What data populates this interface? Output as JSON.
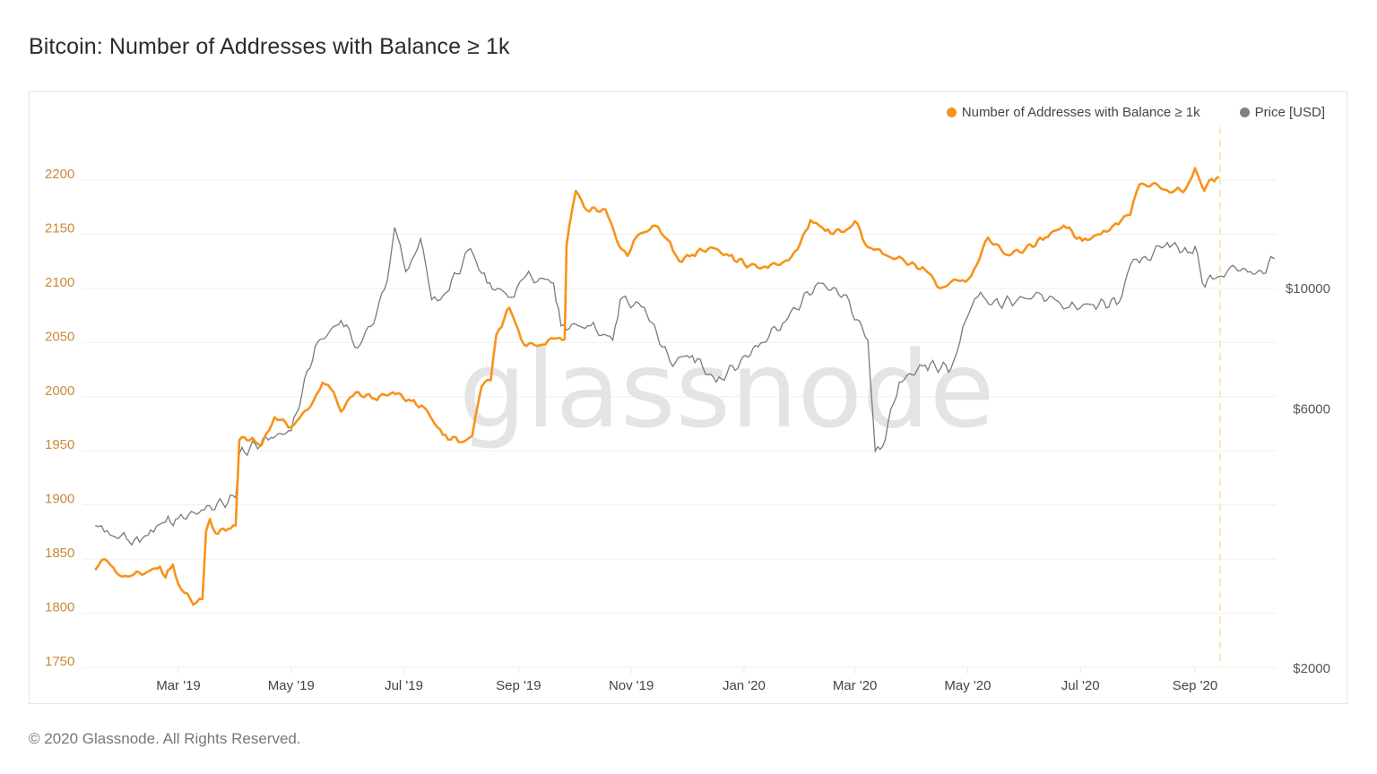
{
  "header": {
    "title": "Bitcoin: Number of Addresses with Balance ≥ 1k"
  },
  "legend": [
    {
      "label": "Number of Addresses with Balance ≥ 1k",
      "color": "#f7931a"
    },
    {
      "label": "Price [USD]",
      "color": "#808080"
    }
  ],
  "watermark": "glassnode",
  "footer": {
    "copyright": "© 2020 Glassnode. All Rights Reserved."
  },
  "chart_data": {
    "type": "line",
    "title": "Bitcoin: Number of Addresses with Balance ≥ 1k",
    "xlabel": "",
    "ylabel": "",
    "x_ticks": [
      "Mar '19",
      "May '19",
      "Jul '19",
      "Sep '19",
      "Nov '19",
      "Jan '20",
      "Mar '20",
      "May '20",
      "Jul '20",
      "Sep '20"
    ],
    "y_left": {
      "ticks": [
        1750,
        1800,
        1850,
        1900,
        1950,
        2000,
        2050,
        2100,
        2150,
        2200
      ],
      "range": [
        1750,
        2225
      ],
      "color": "#c98a3a"
    },
    "y_right": {
      "ticks": [
        "$2000",
        "$6000",
        "$10000"
      ],
      "scale": "log",
      "range": [
        2000,
        20000
      ]
    },
    "grid": true,
    "legend_position": "top-right",
    "annotations": [
      {
        "type": "vertical-dashed-line",
        "x": "mid Sep '20",
        "color": "#fde9c2"
      }
    ],
    "x_range": [
      "Jan '19 (mid)",
      "Oct '20 (early)"
    ],
    "series": [
      {
        "name": "Number of Addresses with Balance ≥ 1k",
        "axis": "left",
        "color": "#f7931a",
        "points": [
          [
            "2019-01-15",
            1840
          ],
          [
            "2019-01-20",
            1850
          ],
          [
            "2019-01-28",
            1835
          ],
          [
            "2019-02-05",
            1836
          ],
          [
            "2019-02-12",
            1838
          ],
          [
            "2019-02-19",
            1843
          ],
          [
            "2019-02-22",
            1833
          ],
          [
            "2019-02-26",
            1845
          ],
          [
            "2019-03-01",
            1827
          ],
          [
            "2019-03-06",
            1818
          ],
          [
            "2019-03-09",
            1808
          ],
          [
            "2019-03-14",
            1813
          ],
          [
            "2019-03-16",
            1876
          ],
          [
            "2019-03-18",
            1887
          ],
          [
            "2019-03-21",
            1874
          ],
          [
            "2019-03-28",
            1878
          ],
          [
            "2019-04-01",
            1881
          ],
          [
            "2019-04-03",
            1960
          ],
          [
            "2019-04-10",
            1962
          ],
          [
            "2019-04-15",
            1955
          ],
          [
            "2019-04-22",
            1981
          ],
          [
            "2019-05-01",
            1972
          ],
          [
            "2019-05-10",
            1988
          ],
          [
            "2019-05-18",
            2013
          ],
          [
            "2019-05-24",
            2004
          ],
          [
            "2019-05-28",
            1986
          ],
          [
            "2019-06-05",
            2004
          ],
          [
            "2019-06-15",
            1998
          ],
          [
            "2019-06-25",
            2004
          ],
          [
            "2019-07-05",
            1996
          ],
          [
            "2019-07-12",
            1990
          ],
          [
            "2019-07-22",
            1965
          ],
          [
            "2019-08-01",
            1958
          ],
          [
            "2019-08-07",
            1964
          ],
          [
            "2019-08-12",
            2009
          ],
          [
            "2019-08-17",
            2015
          ],
          [
            "2019-08-20",
            2057
          ],
          [
            "2019-08-27",
            2082
          ],
          [
            "2019-09-04",
            2048
          ],
          [
            "2019-09-14",
            2048
          ],
          [
            "2019-09-22",
            2054
          ],
          [
            "2019-09-26",
            2053
          ],
          [
            "2019-09-27",
            2140
          ],
          [
            "2019-10-02",
            2190
          ],
          [
            "2019-10-08",
            2172
          ],
          [
            "2019-10-18",
            2173
          ],
          [
            "2019-10-24",
            2145
          ],
          [
            "2019-10-30",
            2130
          ],
          [
            "2019-11-04",
            2148
          ],
          [
            "2019-11-14",
            2158
          ],
          [
            "2019-11-22",
            2143
          ],
          [
            "2019-11-27",
            2125
          ],
          [
            "2019-12-04",
            2131
          ],
          [
            "2019-12-14",
            2138
          ],
          [
            "2019-12-24",
            2130
          ],
          [
            "2020-01-04",
            2121
          ],
          [
            "2020-01-14",
            2119
          ],
          [
            "2020-01-22",
            2124
          ],
          [
            "2020-01-30",
            2136
          ],
          [
            "2020-02-06",
            2163
          ],
          [
            "2020-02-14",
            2153
          ],
          [
            "2020-02-24",
            2152
          ],
          [
            "2020-03-01",
            2162
          ],
          [
            "2020-03-08",
            2138
          ],
          [
            "2020-03-16",
            2132
          ],
          [
            "2020-03-28",
            2125
          ],
          [
            "2020-04-08",
            2117
          ],
          [
            "2020-04-16",
            2100
          ],
          [
            "2020-04-22",
            2106
          ],
          [
            "2020-04-30",
            2106
          ],
          [
            "2020-05-06",
            2122
          ],
          [
            "2020-05-12",
            2147
          ],
          [
            "2020-05-22",
            2131
          ],
          [
            "2020-06-01",
            2136
          ],
          [
            "2020-06-12",
            2147
          ],
          [
            "2020-06-22",
            2158
          ],
          [
            "2020-07-02",
            2144
          ],
          [
            "2020-07-12",
            2150
          ],
          [
            "2020-07-20",
            2160
          ],
          [
            "2020-07-28",
            2168
          ],
          [
            "2020-08-02",
            2196
          ],
          [
            "2020-08-12",
            2195
          ],
          [
            "2020-08-20",
            2189
          ],
          [
            "2020-08-27",
            2192
          ],
          [
            "2020-09-01",
            2211
          ],
          [
            "2020-09-06",
            2190
          ],
          [
            "2020-09-10",
            2201
          ],
          [
            "2020-09-14",
            2203
          ]
        ]
      },
      {
        "name": "Price [USD]",
        "axis": "right",
        "color": "#808080",
        "points": [
          [
            "2019-01-15",
            3650
          ],
          [
            "2019-01-20",
            3550
          ],
          [
            "2019-02-01",
            3450
          ],
          [
            "2019-02-08",
            3400
          ],
          [
            "2019-02-14",
            3580
          ],
          [
            "2019-02-22",
            3700
          ],
          [
            "2019-03-01",
            3760
          ],
          [
            "2019-03-15",
            3900
          ],
          [
            "2019-04-01",
            4100
          ],
          [
            "2019-04-03",
            4950
          ],
          [
            "2019-04-20",
            5300
          ],
          [
            "2019-05-01",
            5450
          ],
          [
            "2019-05-14",
            7800
          ],
          [
            "2019-05-28",
            8700
          ],
          [
            "2019-06-06",
            7750
          ],
          [
            "2019-06-16",
            8900
          ],
          [
            "2019-06-22",
            10300
          ],
          [
            "2019-06-26",
            12900
          ],
          [
            "2019-07-02",
            10700
          ],
          [
            "2019-07-10",
            12300
          ],
          [
            "2019-07-16",
            9500
          ],
          [
            "2019-07-24",
            9800
          ],
          [
            "2019-08-06",
            11800
          ],
          [
            "2019-08-15",
            10200
          ],
          [
            "2019-08-28",
            9600
          ],
          [
            "2019-09-05",
            10500
          ],
          [
            "2019-09-20",
            10200
          ],
          [
            "2019-09-24",
            8500
          ],
          [
            "2019-10-10",
            8500
          ],
          [
            "2019-10-22",
            8000
          ],
          [
            "2019-10-26",
            9500
          ],
          [
            "2019-11-08",
            9200
          ],
          [
            "2019-11-22",
            7300
          ],
          [
            "2019-12-04",
            7500
          ],
          [
            "2019-12-17",
            6700
          ],
          [
            "2019-12-30",
            7300
          ],
          [
            "2020-01-10",
            7900
          ],
          [
            "2020-01-22",
            8600
          ],
          [
            "2020-02-10",
            10200
          ],
          [
            "2020-02-24",
            9700
          ],
          [
            "2020-03-08",
            8000
          ],
          [
            "2020-03-12",
            5000
          ],
          [
            "2020-03-16",
            5100
          ],
          [
            "2020-03-25",
            6700
          ],
          [
            "2020-04-08",
            7200
          ],
          [
            "2020-04-22",
            7100
          ],
          [
            "2020-04-30",
            8700
          ],
          [
            "2020-05-08",
            9800
          ],
          [
            "2020-05-14",
            9300
          ],
          [
            "2020-05-28",
            9500
          ],
          [
            "2020-06-10",
            9700
          ],
          [
            "2020-06-25",
            9200
          ],
          [
            "2020-07-08",
            9300
          ],
          [
            "2020-07-22",
            9400
          ],
          [
            "2020-07-28",
            11000
          ],
          [
            "2020-08-02",
            11100
          ],
          [
            "2020-08-17",
            12100
          ],
          [
            "2020-08-28",
            11600
          ],
          [
            "2020-09-01",
            11900
          ],
          [
            "2020-09-05",
            10200
          ],
          [
            "2020-09-12",
            10400
          ],
          [
            "2020-09-20",
            10900
          ],
          [
            "2020-10-01",
            10700
          ],
          [
            "2020-10-08",
            10600
          ],
          [
            "2020-10-12",
            11400
          ],
          [
            "2020-10-14",
            11300
          ]
        ]
      }
    ]
  }
}
